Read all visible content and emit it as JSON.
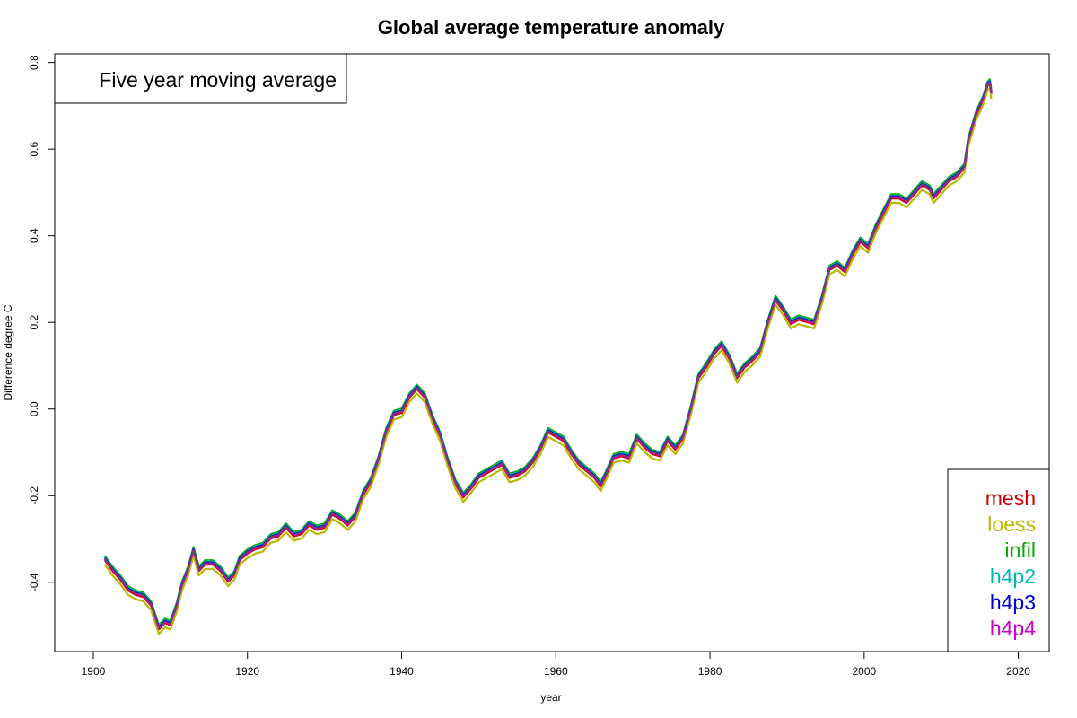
{
  "chart_data": {
    "type": "line",
    "title": "Global average temperature anomaly",
    "xlabel": "year",
    "ylabel": "Difference degree C",
    "annotation": "Five year moving average",
    "xlim": [
      1895,
      2024
    ],
    "ylim": [
      -0.56,
      0.82
    ],
    "x_ticks": [
      1900,
      1920,
      1940,
      1960,
      1980,
      2000,
      2020
    ],
    "y_ticks": [
      -0.4,
      -0.2,
      0.0,
      0.2,
      0.4,
      0.6,
      0.8
    ],
    "y_tick_labels": [
      "-0.4",
      "-0.2",
      "0.0",
      "0.2",
      "0.4",
      "0.6",
      "0.8"
    ],
    "legend_position": "bottom-right",
    "grid": false,
    "base_curve": [
      [
        1901.5,
        -0.345
      ],
      [
        1902.5,
        -0.37
      ],
      [
        1903.5,
        -0.39
      ],
      [
        1904.5,
        -0.415
      ],
      [
        1905.5,
        -0.425
      ],
      [
        1906.5,
        -0.43
      ],
      [
        1907.5,
        -0.45
      ],
      [
        1908.5,
        -0.505
      ],
      [
        1909.3,
        -0.49
      ],
      [
        1910.0,
        -0.495
      ],
      [
        1910.8,
        -0.455
      ],
      [
        1911.5,
        -0.405
      ],
      [
        1912.3,
        -0.37
      ],
      [
        1913.0,
        -0.325
      ],
      [
        1913.7,
        -0.37
      ],
      [
        1914.5,
        -0.355
      ],
      [
        1915.5,
        -0.355
      ],
      [
        1916.5,
        -0.37
      ],
      [
        1917.5,
        -0.395
      ],
      [
        1918.3,
        -0.38
      ],
      [
        1919.0,
        -0.345
      ],
      [
        1920.0,
        -0.33
      ],
      [
        1921.0,
        -0.32
      ],
      [
        1922.0,
        -0.315
      ],
      [
        1923.0,
        -0.295
      ],
      [
        1924.0,
        -0.29
      ],
      [
        1925.0,
        -0.27
      ],
      [
        1926.0,
        -0.29
      ],
      [
        1927.0,
        -0.285
      ],
      [
        1928.0,
        -0.265
      ],
      [
        1929.0,
        -0.275
      ],
      [
        1930.0,
        -0.27
      ],
      [
        1931.0,
        -0.24
      ],
      [
        1932.0,
        -0.25
      ],
      [
        1933.0,
        -0.265
      ],
      [
        1934.0,
        -0.245
      ],
      [
        1935.0,
        -0.195
      ],
      [
        1936.0,
        -0.165
      ],
      [
        1937.0,
        -0.115
      ],
      [
        1938.0,
        -0.05
      ],
      [
        1939.0,
        -0.01
      ],
      [
        1940.0,
        -0.005
      ],
      [
        1941.0,
        0.03
      ],
      [
        1942.0,
        0.05
      ],
      [
        1943.0,
        0.03
      ],
      [
        1944.0,
        -0.02
      ],
      [
        1945.0,
        -0.06
      ],
      [
        1946.0,
        -0.12
      ],
      [
        1947.0,
        -0.17
      ],
      [
        1948.0,
        -0.2
      ],
      [
        1949.0,
        -0.18
      ],
      [
        1950.0,
        -0.155
      ],
      [
        1951.0,
        -0.145
      ],
      [
        1952.0,
        -0.135
      ],
      [
        1953.0,
        -0.125
      ],
      [
        1954.0,
        -0.155
      ],
      [
        1955.0,
        -0.15
      ],
      [
        1956.0,
        -0.14
      ],
      [
        1957.0,
        -0.12
      ],
      [
        1958.0,
        -0.09
      ],
      [
        1959.0,
        -0.05
      ],
      [
        1960.0,
        -0.06
      ],
      [
        1961.0,
        -0.07
      ],
      [
        1962.0,
        -0.1
      ],
      [
        1963.0,
        -0.125
      ],
      [
        1964.0,
        -0.14
      ],
      [
        1965.0,
        -0.155
      ],
      [
        1965.8,
        -0.175
      ],
      [
        1966.5,
        -0.15
      ],
      [
        1967.5,
        -0.11
      ],
      [
        1968.5,
        -0.105
      ],
      [
        1969.5,
        -0.11
      ],
      [
        1970.5,
        -0.065
      ],
      [
        1971.5,
        -0.085
      ],
      [
        1972.5,
        -0.1
      ],
      [
        1973.5,
        -0.105
      ],
      [
        1974.5,
        -0.07
      ],
      [
        1975.5,
        -0.09
      ],
      [
        1976.5,
        -0.065
      ],
      [
        1977.5,
        0.0
      ],
      [
        1978.5,
        0.075
      ],
      [
        1979.5,
        0.1
      ],
      [
        1980.5,
        0.13
      ],
      [
        1981.5,
        0.15
      ],
      [
        1982.5,
        0.12
      ],
      [
        1983.5,
        0.075
      ],
      [
        1984.5,
        0.1
      ],
      [
        1985.5,
        0.115
      ],
      [
        1986.5,
        0.135
      ],
      [
        1987.5,
        0.2
      ],
      [
        1988.5,
        0.255
      ],
      [
        1989.5,
        0.23
      ],
      [
        1990.5,
        0.2
      ],
      [
        1991.5,
        0.21
      ],
      [
        1992.5,
        0.205
      ],
      [
        1993.5,
        0.2
      ],
      [
        1994.5,
        0.255
      ],
      [
        1995.5,
        0.325
      ],
      [
        1996.5,
        0.335
      ],
      [
        1997.5,
        0.32
      ],
      [
        1998.5,
        0.36
      ],
      [
        1999.5,
        0.39
      ],
      [
        2000.5,
        0.375
      ],
      [
        2001.5,
        0.42
      ],
      [
        2002.5,
        0.455
      ],
      [
        2003.5,
        0.49
      ],
      [
        2004.5,
        0.49
      ],
      [
        2005.5,
        0.48
      ],
      [
        2006.5,
        0.5
      ],
      [
        2007.5,
        0.52
      ],
      [
        2008.5,
        0.51
      ],
      [
        2009.0,
        0.49
      ],
      [
        2010.0,
        0.51
      ],
      [
        2011.0,
        0.53
      ],
      [
        2012.0,
        0.54
      ],
      [
        2013.0,
        0.56
      ],
      [
        2013.5,
        0.62
      ],
      [
        2014.5,
        0.68
      ],
      [
        2015.5,
        0.72
      ],
      [
        2016.0,
        0.75
      ],
      [
        2016.3,
        0.755
      ],
      [
        2016.5,
        0.73
      ]
    ],
    "series": [
      {
        "name": "mesh",
        "color": "#cc0000",
        "offset": -0.004
      },
      {
        "name": "loess",
        "color": "#b8b800",
        "offset": -0.014
      },
      {
        "name": "infil",
        "color": "#00aa00",
        "offset": 0.006
      },
      {
        "name": "h4p2",
        "color": "#00b8b8",
        "offset": 0.003
      },
      {
        "name": "h4p3",
        "color": "#0000cc",
        "offset": 0.001
      },
      {
        "name": "h4p4",
        "color": "#cc00cc",
        "offset": -0.001
      }
    ],
    "overlay_color": "#555555"
  }
}
